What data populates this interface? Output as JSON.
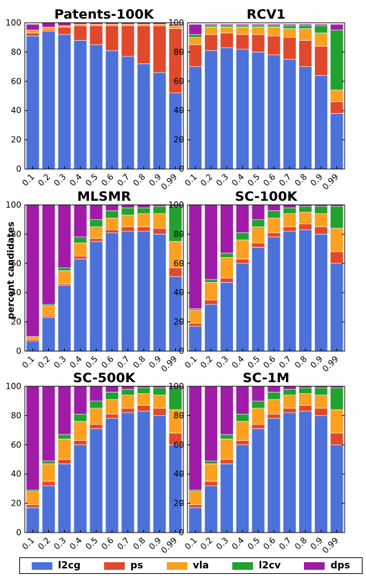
{
  "ylabel": "percent candidates",
  "colors": {
    "l2cg": "#4c72d9",
    "ps": "#e0492c",
    "vla": "#fba020",
    "l2cv": "#21a12d",
    "dps": "#a01ca8"
  },
  "legend": [
    {
      "key": "l2cg",
      "label": "l2cg"
    },
    {
      "key": "ps",
      "label": "ps"
    },
    {
      "key": "vla",
      "label": "vla"
    },
    {
      "key": "l2cv",
      "label": "l2cv"
    },
    {
      "key": "dps",
      "label": "dps"
    }
  ],
  "chart_data": [
    {
      "type": "bar",
      "stacked": true,
      "title": "Patents-100K",
      "categories": [
        "0.1",
        "0.2",
        "0.3",
        "0.4",
        "0.5",
        "0.6",
        "0.7",
        "0.8",
        "0.9",
        "0.99"
      ],
      "ylim": [
        0,
        100
      ],
      "yticks": [
        0,
        20,
        40,
        60,
        80,
        100
      ],
      "series": [
        {
          "name": "l2cg",
          "values": [
            91,
            94,
            92,
            88,
            85,
            81,
            77,
            72,
            66,
            52
          ]
        },
        {
          "name": "ps",
          "values": [
            2,
            1,
            5,
            10,
            13,
            17,
            21,
            26,
            32,
            44
          ]
        },
        {
          "name": "vla",
          "values": [
            2,
            2,
            1,
            1,
            1,
            1,
            1,
            1,
            1,
            2
          ]
        },
        {
          "name": "l2cv",
          "values": [
            0,
            0,
            0,
            0,
            0,
            0,
            0,
            0,
            0,
            0
          ]
        },
        {
          "name": "dps",
          "values": [
            4,
            3,
            2,
            1,
            1,
            1,
            1,
            1,
            1,
            1
          ]
        }
      ]
    },
    {
      "type": "bar",
      "stacked": true,
      "title": "RCV1",
      "categories": [
        "0.1",
        "0.2",
        "0.3",
        "0.4",
        "0.5",
        "0.6",
        "0.7",
        "0.8",
        "0.9",
        "0.99"
      ],
      "ylim": [
        0,
        100
      ],
      "yticks": [
        0,
        20,
        40,
        60,
        80,
        100
      ],
      "series": [
        {
          "name": "l2cg",
          "values": [
            70,
            81,
            83,
            82,
            80,
            78,
            75,
            70,
            64,
            38
          ]
        },
        {
          "name": "ps",
          "values": [
            15,
            11,
            10,
            10,
            12,
            13,
            15,
            18,
            20,
            8
          ]
        },
        {
          "name": "vla",
          "values": [
            5,
            5,
            4,
            5,
            5,
            6,
            6,
            8,
            9,
            8
          ]
        },
        {
          "name": "l2cv",
          "values": [
            2,
            1,
            1,
            1,
            1,
            1,
            2,
            2,
            5,
            41
          ]
        },
        {
          "name": "dps",
          "values": [
            7,
            1,
            1,
            1,
            1,
            1,
            1,
            1,
            1,
            4
          ]
        }
      ]
    },
    {
      "type": "bar",
      "stacked": true,
      "title": "MLSMR",
      "categories": [
        "0.1",
        "0.2",
        "0.3",
        "0.4",
        "0.5",
        "0.6",
        "0.7",
        "0.8",
        "0.9",
        "0.99"
      ],
      "ylim": [
        0,
        100
      ],
      "yticks": [
        0,
        20,
        40,
        60,
        80,
        100
      ],
      "series": [
        {
          "name": "l2cg",
          "values": [
            7,
            23,
            45,
            63,
            75,
            81,
            82,
            82,
            80,
            51
          ]
        },
        {
          "name": "ps",
          "values": [
            1,
            1,
            1,
            2,
            2,
            2,
            3,
            3,
            4,
            6
          ]
        },
        {
          "name": "vla",
          "values": [
            2,
            7,
            9,
            9,
            8,
            8,
            8,
            9,
            10,
            18
          ]
        },
        {
          "name": "l2cv",
          "values": [
            0,
            1,
            2,
            4,
            5,
            5,
            5,
            4,
            5,
            24
          ]
        },
        {
          "name": "dps",
          "values": [
            90,
            68,
            43,
            22,
            10,
            4,
            2,
            2,
            1,
            1
          ]
        }
      ]
    },
    {
      "type": "bar",
      "stacked": true,
      "title": "SC-100K",
      "categories": [
        "0.1",
        "0.2",
        "0.3",
        "0.4",
        "0.5",
        "0.6",
        "0.7",
        "0.8",
        "0.9",
        "0.99"
      ],
      "ylim": [
        0,
        100
      ],
      "yticks": [
        0,
        20,
        40,
        60,
        80,
        100
      ],
      "series": [
        {
          "name": "l2cg",
          "values": [
            17,
            32,
            47,
            60,
            71,
            78,
            82,
            83,
            80,
            60
          ]
        },
        {
          "name": "ps",
          "values": [
            2,
            3,
            3,
            3,
            3,
            3,
            3,
            4,
            5,
            8
          ]
        },
        {
          "name": "vla",
          "values": [
            9,
            12,
            14,
            13,
            11,
            10,
            9,
            8,
            9,
            16
          ]
        },
        {
          "name": "l2cv",
          "values": [
            1,
            2,
            3,
            5,
            5,
            5,
            4,
            4,
            5,
            15
          ]
        },
        {
          "name": "dps",
          "values": [
            71,
            51,
            33,
            19,
            10,
            4,
            2,
            1,
            1,
            1
          ]
        }
      ]
    },
    {
      "type": "bar",
      "stacked": true,
      "title": "SC-500K",
      "categories": [
        "0.1",
        "0.2",
        "0.3",
        "0.4",
        "0.5",
        "0.6",
        "0.7",
        "0.8",
        "0.9",
        "0.99"
      ],
      "ylim": [
        0,
        100
      ],
      "yticks": [
        0,
        20,
        40,
        60,
        80,
        100
      ],
      "series": [
        {
          "name": "l2cg",
          "values": [
            17,
            32,
            47,
            60,
            71,
            78,
            82,
            83,
            80,
            60
          ]
        },
        {
          "name": "ps",
          "values": [
            2,
            3,
            3,
            3,
            3,
            3,
            3,
            4,
            5,
            8
          ]
        },
        {
          "name": "vla",
          "values": [
            9,
            12,
            14,
            13,
            11,
            10,
            9,
            8,
            9,
            16
          ]
        },
        {
          "name": "l2cv",
          "values": [
            1,
            2,
            3,
            5,
            5,
            5,
            4,
            4,
            5,
            15
          ]
        },
        {
          "name": "dps",
          "values": [
            71,
            51,
            33,
            19,
            10,
            4,
            2,
            1,
            1,
            1
          ]
        }
      ]
    },
    {
      "type": "bar",
      "stacked": true,
      "title": "SC-1M",
      "categories": [
        "0.1",
        "0.2",
        "0.3",
        "0.4",
        "0.5",
        "0.6",
        "0.7",
        "0.8",
        "0.9",
        "0.99"
      ],
      "ylim": [
        0,
        100
      ],
      "yticks": [
        0,
        20,
        40,
        60,
        80,
        100
      ],
      "series": [
        {
          "name": "l2cg",
          "values": [
            17,
            32,
            47,
            60,
            71,
            78,
            82,
            83,
            80,
            60
          ]
        },
        {
          "name": "ps",
          "values": [
            2,
            3,
            3,
            3,
            3,
            3,
            3,
            4,
            5,
            8
          ]
        },
        {
          "name": "vla",
          "values": [
            9,
            12,
            14,
            13,
            11,
            10,
            9,
            8,
            9,
            16
          ]
        },
        {
          "name": "l2cv",
          "values": [
            1,
            2,
            3,
            5,
            5,
            5,
            4,
            4,
            5,
            15
          ]
        },
        {
          "name": "dps",
          "values": [
            71,
            51,
            33,
            19,
            10,
            4,
            2,
            1,
            1,
            1
          ]
        }
      ]
    }
  ]
}
